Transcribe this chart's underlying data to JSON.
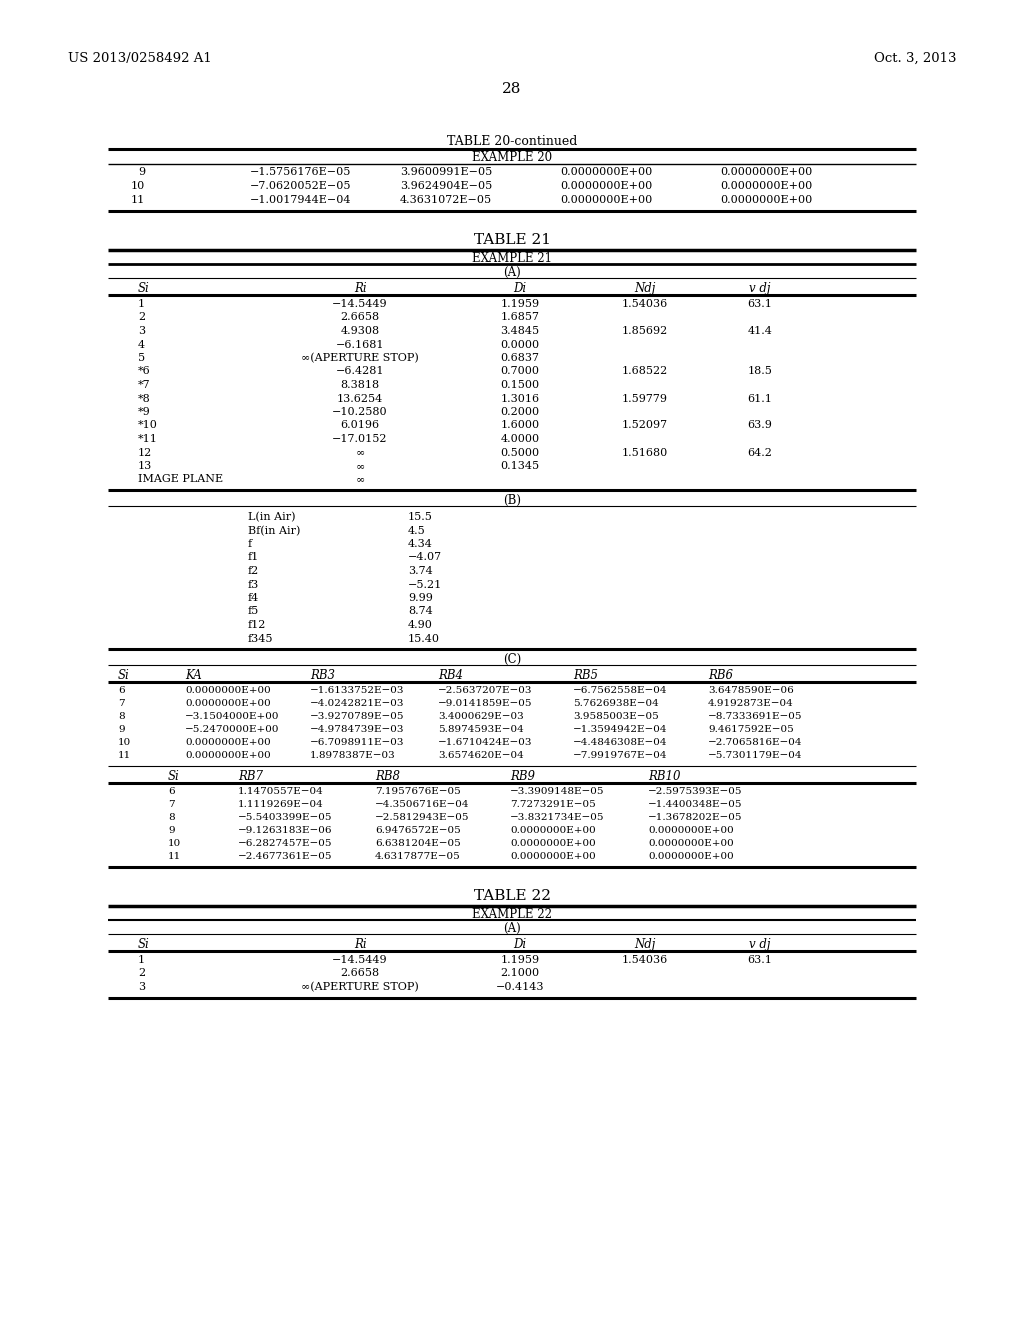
{
  "page_number": "28",
  "header_left": "US 2013/0258492 A1",
  "header_right": "Oct. 3, 2013",
  "bg_color": "#ffffff",
  "table20_continued": {
    "title": "TABLE 20-continued",
    "subtitle": "EXAMPLE 20",
    "rows": [
      [
        "9",
        "−1.5756176E−05",
        "3.9600991E−05",
        "0.0000000E+00",
        "0.0000000E+00"
      ],
      [
        "10",
        "−7.0620052E−05",
        "3.9624904E−05",
        "0.0000000E+00",
        "0.0000000E+00"
      ],
      [
        "11",
        "−1.0017944E−04",
        "4.3631072E−05",
        "0.0000000E+00",
        "0.0000000E+00"
      ]
    ]
  },
  "table21_title": "TABLE 21",
  "table21_subtitle": "EXAMPLE 21",
  "table21A": {
    "section": "(A)",
    "headers": [
      "Si",
      "Ri",
      "Di",
      "Ndj",
      "v dj"
    ],
    "rows": [
      [
        "1",
        "−14.5449",
        "1.1959",
        "1.54036",
        "63.1"
      ],
      [
        "2",
        "2.6658",
        "1.6857",
        "",
        ""
      ],
      [
        "3",
        "4.9308",
        "3.4845",
        "1.85692",
        "41.4"
      ],
      [
        "4",
        "−6.1681",
        "0.0000",
        "",
        ""
      ],
      [
        "5",
        "∞(APERTURE STOP)",
        "0.6837",
        "",
        ""
      ],
      [
        "*6",
        "−6.4281",
        "0.7000",
        "1.68522",
        "18.5"
      ],
      [
        "*7",
        "8.3818",
        "0.1500",
        "",
        ""
      ],
      [
        "*8",
        "13.6254",
        "1.3016",
        "1.59779",
        "61.1"
      ],
      [
        "*9",
        "−10.2580",
        "0.2000",
        "",
        ""
      ],
      [
        "*10",
        "6.0196",
        "1.6000",
        "1.52097",
        "63.9"
      ],
      [
        "*11",
        "−17.0152",
        "4.0000",
        "",
        ""
      ],
      [
        "12",
        "∞",
        "0.5000",
        "1.51680",
        "64.2"
      ],
      [
        "13",
        "∞",
        "0.1345",
        "",
        ""
      ],
      [
        "IMAGE PLANE",
        "∞",
        "",
        "",
        ""
      ]
    ]
  },
  "table21B": {
    "section": "(B)",
    "rows": [
      [
        "L(in Air)",
        "15.5"
      ],
      [
        "Bf(in Air)",
        "4.5"
      ],
      [
        "f",
        "4.34"
      ],
      [
        "f1",
        "−4.07"
      ],
      [
        "f2",
        "3.74"
      ],
      [
        "f3",
        "−5.21"
      ],
      [
        "f4",
        "9.99"
      ],
      [
        "f5",
        "8.74"
      ],
      [
        "f12",
        "4.90"
      ],
      [
        "f345",
        "15.40"
      ]
    ]
  },
  "table21C_upper": {
    "section": "(C)",
    "headers": [
      "Si",
      "KA",
      "RB3",
      "RB4",
      "RB5",
      "RB6"
    ],
    "rows": [
      [
        "6",
        "0.0000000E+00",
        "−1.6133752E−03",
        "−2.5637207E−03",
        "−6.7562558E−04",
        "3.6478590E−06"
      ],
      [
        "7",
        "0.0000000E+00",
        "−4.0242821E−03",
        "−9.0141859E−05",
        "5.7626938E−04",
        "4.9192873E−04"
      ],
      [
        "8",
        "−3.1504000E+00",
        "−3.9270789E−05",
        "3.4000629E−03",
        "3.9585003E−05",
        "−8.7333691E−05"
      ],
      [
        "9",
        "−5.2470000E+00",
        "−4.9784739E−03",
        "5.8974593E−04",
        "−1.3594942E−04",
        "9.4617592E−05"
      ],
      [
        "10",
        "0.0000000E+00",
        "−6.7098911E−03",
        "−1.6710424E−03",
        "−4.4846308E−04",
        "−2.7065816E−04"
      ],
      [
        "11",
        "0.0000000E+00",
        "1.8978387E−03",
        "3.6574620E−04",
        "−7.9919767E−04",
        "−5.7301179E−04"
      ]
    ]
  },
  "table21C_lower": {
    "headers": [
      "Si",
      "RB7",
      "RB8",
      "RB9",
      "RB10"
    ],
    "rows": [
      [
        "6",
        "1.1470557E−04",
        "7.1957676E−05",
        "−3.3909148E−05",
        "−2.5975393E−05"
      ],
      [
        "7",
        "1.1119269E−04",
        "−4.3506716E−04",
        "7.7273291E−05",
        "−1.4400348E−05"
      ],
      [
        "8",
        "−5.5403399E−05",
        "−2.5812943E−05",
        "−3.8321734E−05",
        "−1.3678202E−05"
      ],
      [
        "9",
        "−9.1263183E−06",
        "6.9476572E−05",
        "0.0000000E+00",
        "0.0000000E+00"
      ],
      [
        "10",
        "−6.2827457E−05",
        "6.6381204E−05",
        "0.0000000E+00",
        "0.0000000E+00"
      ],
      [
        "11",
        "−2.4677361E−05",
        "4.6317877E−05",
        "0.0000000E+00",
        "0.0000000E+00"
      ]
    ]
  },
  "table22_title": "TABLE 22",
  "table22_subtitle": "EXAMPLE 22",
  "table22A": {
    "section": "(A)",
    "headers": [
      "Si",
      "Ri",
      "Di",
      "Ndj",
      "v dj"
    ],
    "rows": [
      [
        "1",
        "−14.5449",
        "1.1959",
        "1.54036",
        "63.1"
      ],
      [
        "2",
        "2.6658",
        "2.1000",
        "",
        ""
      ],
      [
        "3",
        "∞(APERTURE STOP)",
        "−0.4143",
        "",
        ""
      ]
    ]
  }
}
